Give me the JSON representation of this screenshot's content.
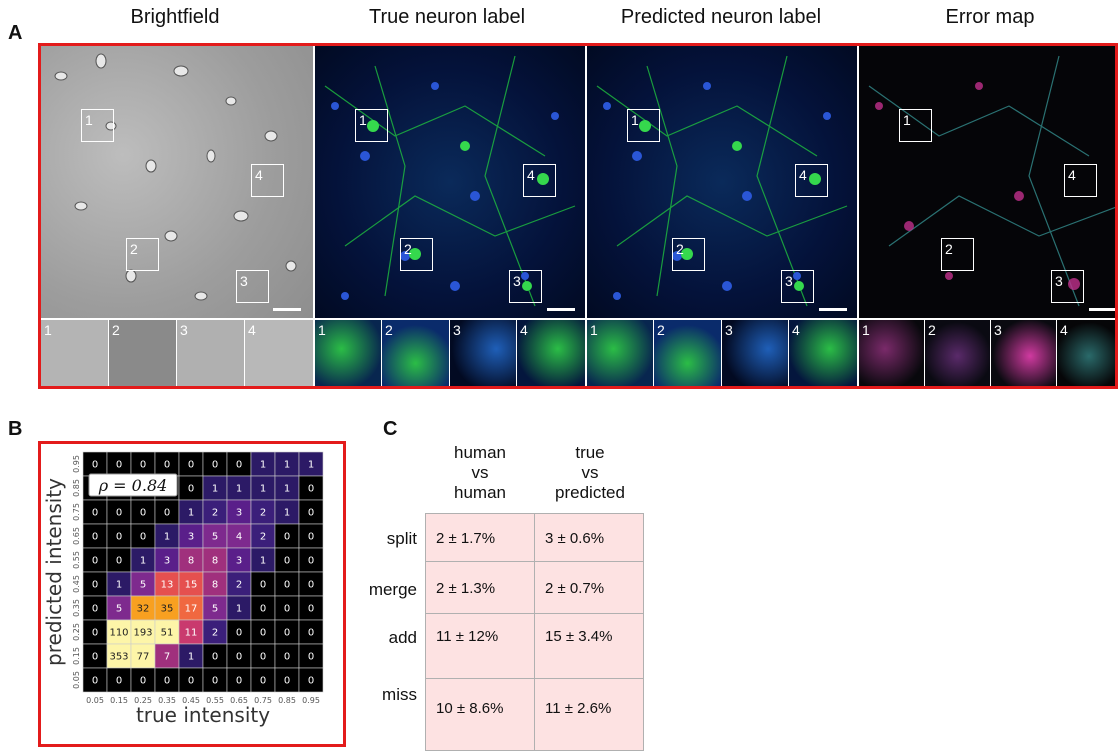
{
  "panels": {
    "a": "A",
    "b": "B",
    "c": "C"
  },
  "columns": [
    "Brightfield",
    "True neuron label",
    "Predicted neuron label",
    "Error map"
  ],
  "roi_labels": [
    "1",
    "2",
    "3",
    "4"
  ],
  "heatmap": {
    "rho_label": "ρ = 0.84",
    "xlabel": "true intensity",
    "ylabel": "predicted intensity",
    "ticks": [
      "0.05",
      "0.15",
      "0.25",
      "0.35",
      "0.45",
      "0.55",
      "0.65",
      "0.75",
      "0.85",
      "0.95"
    ],
    "counts": [
      [
        0,
        0,
        0,
        0,
        0,
        0,
        0,
        1,
        1,
        1
      ],
      [
        0,
        0,
        0,
        0,
        0,
        1,
        1,
        1,
        1,
        0
      ],
      [
        0,
        0,
        0,
        0,
        1,
        2,
        3,
        2,
        1,
        0
      ],
      [
        0,
        0,
        0,
        1,
        3,
        5,
        4,
        2,
        0,
        0
      ],
      [
        0,
        0,
        1,
        3,
        8,
        8,
        3,
        1,
        0,
        0
      ],
      [
        0,
        1,
        5,
        13,
        15,
        8,
        2,
        0,
        0,
        0
      ],
      [
        0,
        5,
        32,
        35,
        17,
        5,
        1,
        0,
        0,
        0
      ],
      [
        0,
        110,
        193,
        51,
        11,
        2,
        0,
        0,
        0,
        0
      ],
      [
        0,
        353,
        77,
        7,
        1,
        0,
        0,
        0,
        0,
        0
      ],
      [
        0,
        0,
        0,
        0,
        0,
        0,
        0,
        0,
        0,
        0
      ]
    ]
  },
  "table": {
    "col_headers": [
      [
        "human",
        "vs",
        "human"
      ],
      [
        "true",
        "vs",
        "predicted"
      ]
    ],
    "rows": [
      {
        "label": "split",
        "values": [
          "2 ± 1.7%",
          "3 ± 0.6%"
        ]
      },
      {
        "label": "merge",
        "values": [
          "2 ± 1.3%",
          "2 ± 0.7%"
        ]
      },
      {
        "label": "add",
        "values": [
          "11 ± 12%",
          "15 ± 3.4%"
        ]
      },
      {
        "label": "miss",
        "values": [
          "10 ± 8.6%",
          "11 ± 2.6%"
        ]
      }
    ]
  }
}
